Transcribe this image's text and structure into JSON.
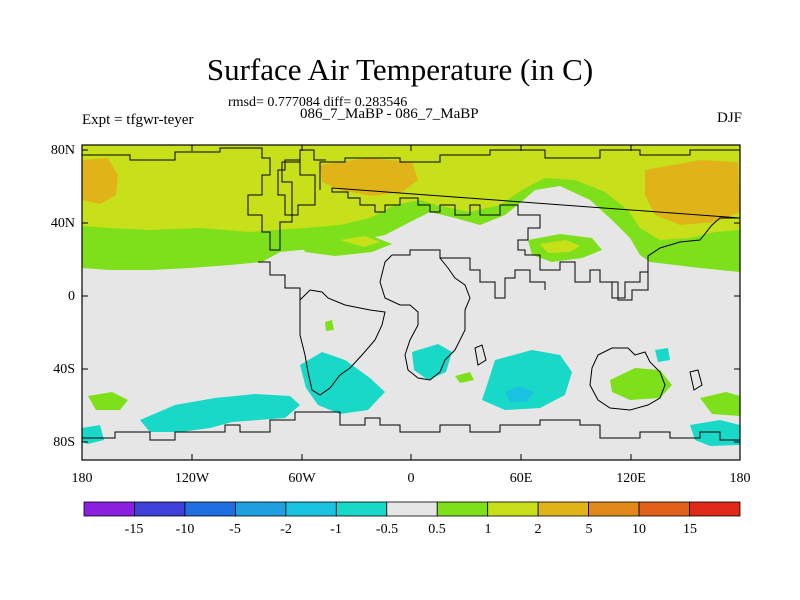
{
  "title": "Surface Air Temperature (in C)",
  "stats_line": "rmsd= 0.777084 diff= 0.283546",
  "subtitle": "086_7_MaBP - 086_7_MaBP",
  "left_label": "Expt = tfgwr-teyer",
  "right_label": "DJF",
  "axes": {
    "lat_ticks": [
      "80N",
      "40N",
      "0",
      "40S",
      "80S"
    ],
    "lon_ticks": [
      "180",
      "120W",
      "60W",
      "0",
      "60E",
      "120E",
      "180"
    ]
  },
  "colorbar": {
    "labels": [
      "-15",
      "-10",
      "-5",
      "-2",
      "-1",
      "-0.5",
      "0.5",
      "1",
      "2",
      "5",
      "10",
      "15"
    ],
    "colors": [
      "#8a1fe0",
      "#3f3fd9",
      "#1f6fe0",
      "#1f9fe0",
      "#18c2e0",
      "#18d8c8",
      "#e6e6e6",
      "#7ee01a",
      "#c8e01a",
      "#e0b418",
      "#e08818",
      "#e0601a",
      "#e02818"
    ]
  },
  "map_colors": {
    "background": "#e6e6e6",
    "green": "#7ee01a",
    "yellow_green": "#c8e01a",
    "orange": "#e0b418",
    "cyan": "#18d8c8",
    "light_blue": "#18c2e0",
    "coastline": "#000000"
  }
}
